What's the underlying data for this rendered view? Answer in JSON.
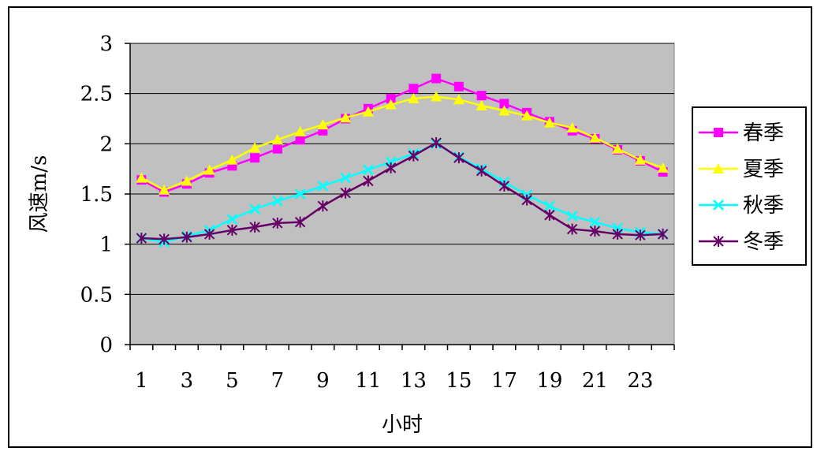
{
  "chart_data": {
    "type": "line",
    "xlabel": "小时",
    "ylabel": "风速m/s",
    "x": [
      1,
      2,
      3,
      4,
      5,
      6,
      7,
      8,
      9,
      10,
      11,
      12,
      13,
      14,
      15,
      16,
      17,
      18,
      19,
      20,
      21,
      22,
      23,
      24
    ],
    "x_tick_labels": [
      "1",
      "3",
      "5",
      "7",
      "9",
      "11",
      "13",
      "15",
      "17",
      "19",
      "21",
      "23"
    ],
    "y_tick_labels": [
      "0",
      "0.5",
      "1",
      "1.5",
      "2",
      "2.5",
      "3"
    ],
    "ylim": [
      0,
      3
    ],
    "grid": true,
    "legend_position": "right",
    "plot_background": "#c0c0c0",
    "series": [
      {
        "name": "春季",
        "color": "#ff00ff",
        "marker": "square",
        "values": [
          1.64,
          1.52,
          1.6,
          1.71,
          1.78,
          1.86,
          1.95,
          2.04,
          2.13,
          2.25,
          2.35,
          2.45,
          2.55,
          2.65,
          2.57,
          2.48,
          2.4,
          2.31,
          2.22,
          2.13,
          2.05,
          1.94,
          1.83,
          1.72
        ]
      },
      {
        "name": "夏季",
        "color": "#ffff00",
        "marker": "triangle",
        "values": [
          1.66,
          1.54,
          1.63,
          1.74,
          1.84,
          1.96,
          2.04,
          2.12,
          2.19,
          2.26,
          2.32,
          2.39,
          2.45,
          2.47,
          2.44,
          2.38,
          2.33,
          2.28,
          2.21,
          2.16,
          2.06,
          1.95,
          1.84,
          1.76
        ]
      },
      {
        "name": "秋季",
        "color": "#00ffff",
        "marker": "x",
        "values": [
          1.06,
          1.02,
          1.08,
          1.14,
          1.25,
          1.35,
          1.43,
          1.5,
          1.58,
          1.66,
          1.74,
          1.82,
          1.9,
          2.0,
          1.87,
          1.75,
          1.62,
          1.49,
          1.38,
          1.28,
          1.22,
          1.16,
          1.12,
          1.1
        ]
      },
      {
        "name": "冬季",
        "color": "#660066",
        "marker": "star",
        "values": [
          1.06,
          1.05,
          1.07,
          1.1,
          1.14,
          1.17,
          1.21,
          1.22,
          1.38,
          1.51,
          1.63,
          1.76,
          1.88,
          2.01,
          1.86,
          1.73,
          1.58,
          1.44,
          1.29,
          1.15,
          1.13,
          1.1,
          1.09,
          1.1
        ]
      }
    ]
  }
}
